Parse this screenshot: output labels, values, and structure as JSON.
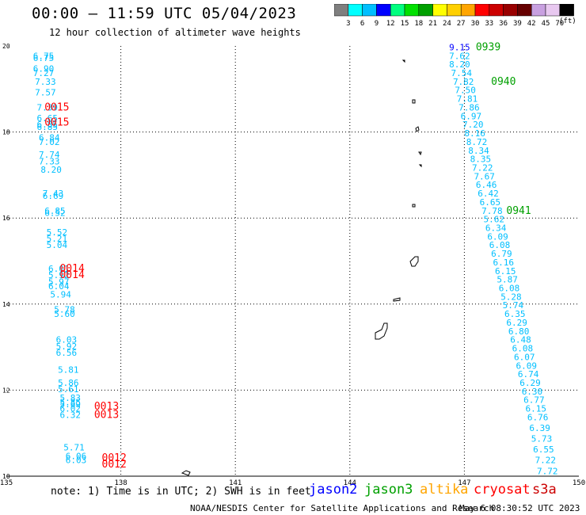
{
  "title": "00:00 – 11:59 UTC 05/04/2023",
  "subtitle": "12 hour collection of altimeter wave heights",
  "colorbar": {
    "unit": "(ft)",
    "ticks": [
      "3",
      "6",
      "9",
      "12",
      "15",
      "18",
      "21",
      "24",
      "27",
      "30",
      "33",
      "36",
      "39",
      "42",
      "45",
      "70"
    ],
    "colors": [
      "#7f7f7f",
      "#00ffff",
      "#00bfff",
      "#0000ff",
      "#00ff7f",
      "#00e000",
      "#00a000",
      "#ffff00",
      "#ffd000",
      "#ffa500",
      "#ff0000",
      "#cc0000",
      "#990000",
      "#660000",
      "#c8a0e0",
      "#e8c8f0",
      "#000000"
    ]
  },
  "footer": {
    "note": "note: 1) Time is in UTC; 2) SWH is in feet",
    "credit": "NOAA/NESDIS Center for Satellite Applications and Research",
    "timestamp": "May  6 08:30:52 UTC 2023",
    "missions": [
      {
        "name": "jason2",
        "color": "#0000ff"
      },
      {
        "name": "jason3",
        "color": "#00a000"
      },
      {
        "name": "altika",
        "color": "#ffa500"
      },
      {
        "name": "cryosat",
        "color": "#ff0000"
      },
      {
        "name": "s3a",
        "color": "#cc0000"
      }
    ]
  },
  "chart_data": {
    "type": "scatter",
    "title": "00:00 – 11:59 UTC 05/04/2023",
    "xlim": [
      135,
      150
    ],
    "ylim": [
      10,
      20
    ],
    "x_ticks": [
      "135",
      "138",
      "141",
      "144",
      "147",
      "150"
    ],
    "y_ticks": [
      "10",
      "12",
      "14",
      "16",
      "18",
      "20"
    ],
    "grid": true,
    "labels": [
      {
        "lon": 135.7,
        "lat": 19.7,
        "text": "6.75",
        "color": "#00bfff"
      },
      {
        "lon": 135.7,
        "lat": 19.65,
        "text": "6.75",
        "color": "#00bfff"
      },
      {
        "lon": 135.7,
        "lat": 19.4,
        "text": "6.90",
        "color": "#00bfff"
      },
      {
        "lon": 135.7,
        "lat": 19.3,
        "text": "7.27",
        "color": "#00bfff"
      },
      {
        "lon": 135.75,
        "lat": 19.1,
        "text": "7.33",
        "color": "#00bfff"
      },
      {
        "lon": 135.75,
        "lat": 18.85,
        "text": "7.57",
        "color": "#00bfff"
      },
      {
        "lon": 135.8,
        "lat": 18.5,
        "text": "7.39",
        "color": "#00bfff"
      },
      {
        "lon": 135.8,
        "lat": 18.25,
        "text": "6.65",
        "color": "#00bfff"
      },
      {
        "lon": 135.8,
        "lat": 18.1,
        "text": "6.85",
        "color": "#00bfff"
      },
      {
        "lon": 135.8,
        "lat": 18.05,
        "text": "6.85",
        "color": "#00bfff"
      },
      {
        "lon": 135.85,
        "lat": 17.8,
        "text": "6.84",
        "color": "#00bfff"
      },
      {
        "lon": 135.85,
        "lat": 17.7,
        "text": "7.02",
        "color": "#00bfff"
      },
      {
        "lon": 135.85,
        "lat": 17.4,
        "text": "7.74",
        "color": "#00bfff"
      },
      {
        "lon": 135.85,
        "lat": 17.25,
        "text": "7.33",
        "color": "#00bfff"
      },
      {
        "lon": 135.9,
        "lat": 17.05,
        "text": "8.20",
        "color": "#00bfff"
      },
      {
        "lon": 135.95,
        "lat": 16.5,
        "text": "7.43",
        "color": "#00bfff"
      },
      {
        "lon": 135.95,
        "lat": 16.45,
        "text": "6.69",
        "color": "#00bfff"
      },
      {
        "lon": 136.0,
        "lat": 16.1,
        "text": "6.85",
        "color": "#00bfff"
      },
      {
        "lon": 136.0,
        "lat": 16.05,
        "text": "6.52",
        "color": "#00bfff"
      },
      {
        "lon": 136.05,
        "lat": 15.6,
        "text": "5.52",
        "color": "#00bfff"
      },
      {
        "lon": 136.05,
        "lat": 15.45,
        "text": "5.21",
        "color": "#00bfff"
      },
      {
        "lon": 136.05,
        "lat": 15.3,
        "text": "5.04",
        "color": "#00bfff"
      },
      {
        "lon": 136.1,
        "lat": 14.75,
        "text": "6.01",
        "color": "#00bfff"
      },
      {
        "lon": 136.1,
        "lat": 14.6,
        "text": "5.92",
        "color": "#00bfff"
      },
      {
        "lon": 136.1,
        "lat": 14.45,
        "text": "5.97",
        "color": "#00bfff"
      },
      {
        "lon": 136.1,
        "lat": 14.35,
        "text": "6.04",
        "color": "#00bfff"
      },
      {
        "lon": 136.15,
        "lat": 14.15,
        "text": "5.94",
        "color": "#00bfff"
      },
      {
        "lon": 136.25,
        "lat": 13.8,
        "text": "5.78",
        "color": "#00bfff"
      },
      {
        "lon": 136.25,
        "lat": 13.7,
        "text": "5.60",
        "color": "#00bfff"
      },
      {
        "lon": 136.3,
        "lat": 13.1,
        "text": "6.03",
        "color": "#00bfff"
      },
      {
        "lon": 136.3,
        "lat": 12.95,
        "text": "5.92",
        "color": "#00bfff"
      },
      {
        "lon": 136.3,
        "lat": 12.8,
        "text": "6.56",
        "color": "#00bfff"
      },
      {
        "lon": 136.35,
        "lat": 12.4,
        "text": "5.81",
        "color": "#00bfff"
      },
      {
        "lon": 136.35,
        "lat": 12.1,
        "text": "5.86",
        "color": "#00bfff"
      },
      {
        "lon": 136.35,
        "lat": 11.95,
        "text": "5.61",
        "color": "#00bfff"
      },
      {
        "lon": 136.4,
        "lat": 11.75,
        "text": "5.83",
        "color": "#00bfff"
      },
      {
        "lon": 136.4,
        "lat": 11.65,
        "text": "5.85",
        "color": "#00bfff"
      },
      {
        "lon": 136.4,
        "lat": 11.6,
        "text": "5.69",
        "color": "#00bfff"
      },
      {
        "lon": 136.4,
        "lat": 11.5,
        "text": "6.02",
        "color": "#00bfff"
      },
      {
        "lon": 136.4,
        "lat": 11.35,
        "text": "6.32",
        "color": "#00bfff"
      },
      {
        "lon": 136.5,
        "lat": 10.6,
        "text": "5.71",
        "color": "#00bfff"
      },
      {
        "lon": 136.55,
        "lat": 10.4,
        "text": "6.06",
        "color": "#00bfff"
      },
      {
        "lon": 136.55,
        "lat": 10.3,
        "text": "6.03",
        "color": "#00bfff"
      },
      {
        "lon": 146.6,
        "lat": 19.9,
        "text": "9.15",
        "color": "#0000ff"
      },
      {
        "lon": 146.6,
        "lat": 19.7,
        "text": "7.62",
        "color": "#00bfff"
      },
      {
        "lon": 146.6,
        "lat": 19.5,
        "text": "8.20",
        "color": "#00bfff"
      },
      {
        "lon": 146.65,
        "lat": 19.3,
        "text": "7.54",
        "color": "#00bfff"
      },
      {
        "lon": 146.7,
        "lat": 19.1,
        "text": "7.82",
        "color": "#00bfff"
      },
      {
        "lon": 146.75,
        "lat": 18.9,
        "text": "7.50",
        "color": "#00bfff"
      },
      {
        "lon": 146.8,
        "lat": 18.7,
        "text": "7.81",
        "color": "#00bfff"
      },
      {
        "lon": 146.85,
        "lat": 18.5,
        "text": "7.86",
        "color": "#00bfff"
      },
      {
        "lon": 146.9,
        "lat": 18.3,
        "text": "6.97",
        "color": "#00bfff"
      },
      {
        "lon": 146.95,
        "lat": 18.1,
        "text": "7.20",
        "color": "#00bfff"
      },
      {
        "lon": 147.0,
        "lat": 17.9,
        "text": "8.16",
        "color": "#00bfff"
      },
      {
        "lon": 147.05,
        "lat": 17.7,
        "text": "8.72",
        "color": "#00bfff"
      },
      {
        "lon": 147.1,
        "lat": 17.5,
        "text": "8.34",
        "color": "#00bfff"
      },
      {
        "lon": 147.15,
        "lat": 17.3,
        "text": "8.35",
        "color": "#00bfff"
      },
      {
        "lon": 147.2,
        "lat": 17.1,
        "text": "7.22",
        "color": "#00bfff"
      },
      {
        "lon": 147.25,
        "lat": 16.9,
        "text": "7.67",
        "color": "#00bfff"
      },
      {
        "lon": 147.3,
        "lat": 16.7,
        "text": "6.46",
        "color": "#00bfff"
      },
      {
        "lon": 147.35,
        "lat": 16.5,
        "text": "6.42",
        "color": "#00bfff"
      },
      {
        "lon": 147.4,
        "lat": 16.3,
        "text": "6.65",
        "color": "#00bfff"
      },
      {
        "lon": 147.45,
        "lat": 16.1,
        "text": "7.78",
        "color": "#00bfff"
      },
      {
        "lon": 147.5,
        "lat": 15.9,
        "text": "5.62",
        "color": "#00bfff"
      },
      {
        "lon": 147.55,
        "lat": 15.7,
        "text": "6.34",
        "color": "#00bfff"
      },
      {
        "lon": 147.6,
        "lat": 15.5,
        "text": "6.09",
        "color": "#00bfff"
      },
      {
        "lon": 147.65,
        "lat": 15.3,
        "text": "6.08",
        "color": "#00bfff"
      },
      {
        "lon": 147.7,
        "lat": 15.1,
        "text": "6.79",
        "color": "#00bfff"
      },
      {
        "lon": 147.75,
        "lat": 14.9,
        "text": "6.16",
        "color": "#00bfff"
      },
      {
        "lon": 147.8,
        "lat": 14.7,
        "text": "6.15",
        "color": "#00bfff"
      },
      {
        "lon": 147.85,
        "lat": 14.5,
        "text": "5.87",
        "color": "#00bfff"
      },
      {
        "lon": 147.9,
        "lat": 14.3,
        "text": "6.08",
        "color": "#00bfff"
      },
      {
        "lon": 147.95,
        "lat": 14.1,
        "text": "5.28",
        "color": "#00bfff"
      },
      {
        "lon": 148.0,
        "lat": 13.9,
        "text": "5.74",
        "color": "#00bfff"
      },
      {
        "lon": 148.05,
        "lat": 13.7,
        "text": "6.35",
        "color": "#00bfff"
      },
      {
        "lon": 148.1,
        "lat": 13.5,
        "text": "6.29",
        "color": "#00bfff"
      },
      {
        "lon": 148.15,
        "lat": 13.3,
        "text": "6.80",
        "color": "#00bfff"
      },
      {
        "lon": 148.2,
        "lat": 13.1,
        "text": "6.48",
        "color": "#00bfff"
      },
      {
        "lon": 148.25,
        "lat": 12.9,
        "text": "6.08",
        "color": "#00bfff"
      },
      {
        "lon": 148.3,
        "lat": 12.7,
        "text": "6.07",
        "color": "#00bfff"
      },
      {
        "lon": 148.35,
        "lat": 12.5,
        "text": "6.09",
        "color": "#00bfff"
      },
      {
        "lon": 148.4,
        "lat": 12.3,
        "text": "6.74",
        "color": "#00bfff"
      },
      {
        "lon": 148.45,
        "lat": 12.1,
        "text": "6.29",
        "color": "#00bfff"
      },
      {
        "lon": 148.5,
        "lat": 11.9,
        "text": "6.30",
        "color": "#00bfff"
      },
      {
        "lon": 148.55,
        "lat": 11.7,
        "text": "6.77",
        "color": "#00bfff"
      },
      {
        "lon": 148.6,
        "lat": 11.5,
        "text": "6.15",
        "color": "#00bfff"
      },
      {
        "lon": 148.65,
        "lat": 11.3,
        "text": "6.76",
        "color": "#00bfff"
      },
      {
        "lon": 148.7,
        "lat": 11.05,
        "text": "6.39",
        "color": "#00bfff"
      },
      {
        "lon": 148.75,
        "lat": 10.8,
        "text": "5.73",
        "color": "#00bfff"
      },
      {
        "lon": 148.8,
        "lat": 10.55,
        "text": "6.55",
        "color": "#00bfff"
      },
      {
        "lon": 148.85,
        "lat": 10.3,
        "text": "7.22",
        "color": "#00bfff"
      },
      {
        "lon": 148.9,
        "lat": 10.05,
        "text": "7.72",
        "color": "#00bfff"
      }
    ],
    "passes": [
      {
        "lon": 136.0,
        "lat": 18.5,
        "text": "0015",
        "color": "#ff0000"
      },
      {
        "lon": 136.0,
        "lat": 18.15,
        "text": "0015",
        "color": "#ff0000"
      },
      {
        "lon": 136.4,
        "lat": 14.75,
        "text": "0014",
        "color": "#ff0000"
      },
      {
        "lon": 136.4,
        "lat": 14.6,
        "text": "0014",
        "color": "#ff0000"
      },
      {
        "lon": 137.3,
        "lat": 11.55,
        "text": "0013",
        "color": "#ff0000"
      },
      {
        "lon": 137.3,
        "lat": 11.35,
        "text": "0013",
        "color": "#ff0000"
      },
      {
        "lon": 137.5,
        "lat": 10.35,
        "text": "0012",
        "color": "#ff0000"
      },
      {
        "lon": 137.5,
        "lat": 10.2,
        "text": "0012",
        "color": "#ff0000"
      },
      {
        "lon": 147.3,
        "lat": 19.9,
        "text": "0939",
        "color": "#00a000"
      },
      {
        "lon": 147.7,
        "lat": 19.1,
        "text": "0940",
        "color": "#00a000"
      },
      {
        "lon": 148.1,
        "lat": 16.1,
        "text": "0941",
        "color": "#00a000"
      }
    ]
  }
}
